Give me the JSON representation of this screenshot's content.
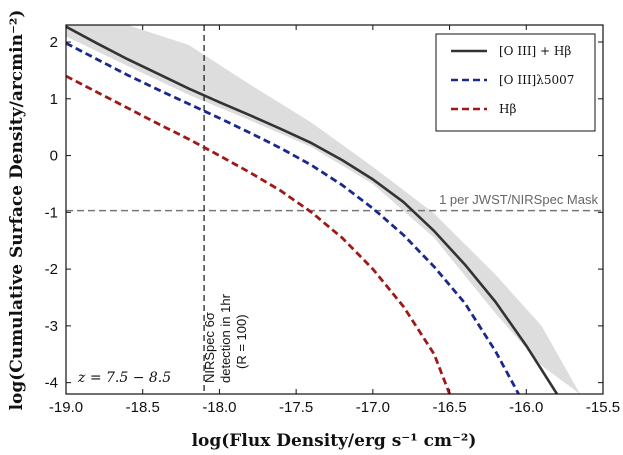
{
  "chart_data": {
    "type": "line",
    "xlabel": "log(Flux Density/erg s⁻¹ cm⁻²)",
    "ylabel": "log(Cumulative Surface Density/arcmin⁻²)",
    "xlim": [
      -19.0,
      -15.5
    ],
    "ylim": [
      -4.2,
      2.3
    ],
    "xticks": [
      -19.0,
      -18.5,
      -18.0,
      -17.5,
      -17.0,
      -16.5,
      -16.0,
      -15.5
    ],
    "xtick_labels": [
      "-19.0",
      "-18.5",
      "-18.0",
      "-17.5",
      "-17.0",
      "-16.5",
      "-16.0",
      "-15.5"
    ],
    "yticks": [
      2,
      1,
      0,
      -1,
      -2,
      -3,
      -4
    ],
    "ytick_labels": [
      "2",
      "1",
      "0",
      "-1",
      "-2",
      "-3",
      "-4"
    ],
    "legend_position": "top-right",
    "series": [
      {
        "name": "[O III] + Hβ",
        "style": "solid",
        "color": "#333333",
        "x": [
          -19.0,
          -18.8,
          -18.6,
          -18.4,
          -18.2,
          -18.0,
          -17.8,
          -17.6,
          -17.4,
          -17.2,
          -17.0,
          -16.8,
          -16.6,
          -16.4,
          -16.2,
          -16.0,
          -15.8
        ],
        "y": [
          2.27,
          1.98,
          1.7,
          1.44,
          1.18,
          0.94,
          0.71,
          0.47,
          0.22,
          -0.08,
          -0.42,
          -0.82,
          -1.33,
          -1.92,
          -2.58,
          -3.35,
          -4.2
        ]
      },
      {
        "name": "[O III]λ5007",
        "style": "dashed",
        "color": "#1a2a8c",
        "x": [
          -19.0,
          -18.8,
          -18.6,
          -18.4,
          -18.2,
          -18.0,
          -17.8,
          -17.6,
          -17.4,
          -17.2,
          -17.0,
          -16.8,
          -16.6,
          -16.4,
          -16.2,
          -16.05
        ],
        "y": [
          1.98,
          1.7,
          1.42,
          1.16,
          0.91,
          0.66,
          0.4,
          0.13,
          -0.17,
          -0.52,
          -0.93,
          -1.4,
          -1.96,
          -2.6,
          -3.45,
          -4.2
        ]
      },
      {
        "name": "Hβ",
        "style": "dashed",
        "color": "#a01818",
        "x": [
          -19.0,
          -18.8,
          -18.6,
          -18.4,
          -18.2,
          -18.0,
          -17.8,
          -17.6,
          -17.4,
          -17.2,
          -17.0,
          -16.8,
          -16.6,
          -16.5
        ],
        "y": [
          1.4,
          1.12,
          0.84,
          0.56,
          0.29,
          0.0,
          -0.3,
          -0.62,
          -1.0,
          -1.45,
          -2.0,
          -2.66,
          -3.5,
          -4.2
        ]
      }
    ],
    "band": {
      "color": "#dddddd",
      "x": [
        -19.0,
        -18.6,
        -18.2,
        -17.8,
        -17.4,
        -17.0,
        -16.6,
        -16.2,
        -15.9,
        -15.65
      ],
      "lower": [
        2.1,
        1.58,
        1.07,
        0.62,
        0.15,
        -0.5,
        -1.45,
        -2.78,
        -3.7,
        -4.2
      ],
      "upper": [
        2.3,
        2.3,
        1.95,
        1.25,
        0.58,
        -0.2,
        -1.02,
        -2.1,
        -3.0,
        -4.2
      ]
    },
    "reference_lines": {
      "vertical_x": -18.1,
      "horizontal_y": -0.97
    },
    "annotations": {
      "mask_label": "1 per JWST/NIRSpec Mask",
      "nirspec_line1": "NIRSpec 6σ",
      "nirspec_line2": "detection in 1hr",
      "nirspec_line3": "(R = 100)",
      "redshift": "z = 7.5 − 8.5"
    }
  }
}
